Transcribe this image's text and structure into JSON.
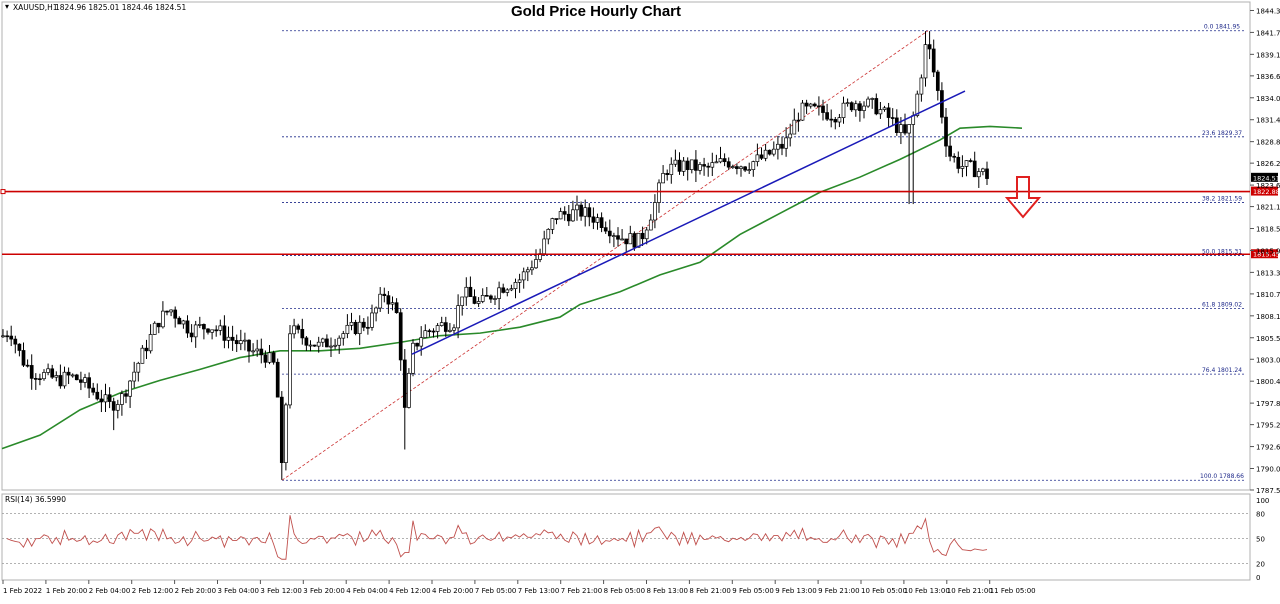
{
  "chart_data": {
    "type": "candlestick",
    "symbol_label": "XAUUSD,H1",
    "ohlc_label": "1824.96 1825.01 1824.46 1824.51",
    "title": "Gold Price Hourly Chart",
    "ylim": [
      1787.5,
      1845.0
    ],
    "y_ticks": [
      "1844.35",
      "1841.75",
      "1839.15",
      "1836.60",
      "1834.00",
      "1831.40",
      "1828.80",
      "1826.25",
      "1823.65",
      "1821.10",
      "1818.50",
      "1815.90",
      "1813.30",
      "1810.75",
      "1808.15",
      "1805.55",
      "1803.00",
      "1800.40",
      "1797.80",
      "1795.25",
      "1792.65",
      "1790.05",
      "1787.50"
    ],
    "x_labels": [
      "1 Feb 2022",
      "1 Feb 20:00",
      "2 Feb 04:00",
      "2 Feb 12:00",
      "2 Feb 20:00",
      "3 Feb 04:00",
      "3 Feb 12:00",
      "3 Feb 20:00",
      "4 Feb 04:00",
      "4 Feb 12:00",
      "4 Feb 20:00",
      "7 Feb 05:00",
      "7 Feb 13:00",
      "7 Feb 21:00",
      "8 Feb 05:00",
      "8 Feb 13:00",
      "8 Feb 21:00",
      "9 Feb 05:00",
      "9 Feb 13:00",
      "9 Feb 21:00",
      "10 Feb 05:00",
      "10 Feb 13:00",
      "10 Feb 21:00",
      "11 Feb 05:00"
    ],
    "current_price": {
      "value": 1824.51,
      "label": "1824.51"
    },
    "horizontal_levels": [
      {
        "value": 1822.88,
        "label": "1822.88",
        "color": "#cc0000"
      },
      {
        "value": 1815.45,
        "label": "1815.45",
        "color": "#cc0000"
      }
    ],
    "fibonacci": {
      "color": "#1f2a8a",
      "levels": [
        {
          "label": "0.0 1841.95",
          "value": 1841.95
        },
        {
          "label": "23.6 1829.37",
          "value": 1829.37
        },
        {
          "label": "38.2 1821.59",
          "value": 1821.59
        },
        {
          "label": "50.0 1815.31",
          "value": 1815.31
        },
        {
          "label": "61.8 1809.02",
          "value": 1809.02
        },
        {
          "label": "76.4 1801.24",
          "value": 1801.24
        },
        {
          "label": "100.0 1788.66",
          "value": 1788.66
        }
      ],
      "swing_low": 1788.66,
      "swing_high": 1841.95
    },
    "trend_line": {
      "color": "#1a1ab8",
      "start_value": 1803.6,
      "end_value": 1834.8
    },
    "moving_average_color": "#2a8a2a",
    "bull_color": "#ffffff",
    "bear_color": "#000000",
    "arrow_color": "#e02020",
    "rsi": {
      "label": "RSI(14) 36.5990",
      "value": 36.599,
      "levels": [
        "80",
        "50",
        "20"
      ],
      "color": "#c0504d"
    }
  }
}
